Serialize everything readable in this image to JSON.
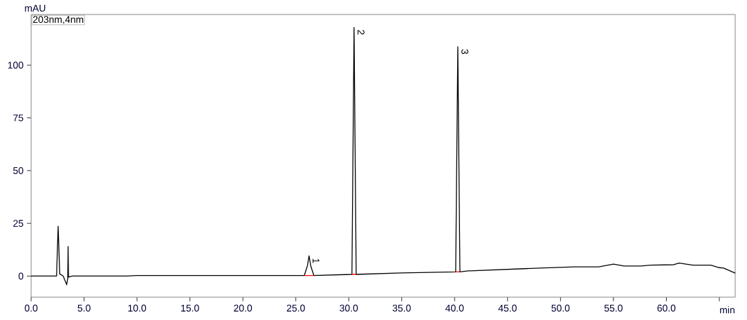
{
  "chart_data": {
    "type": "line",
    "xlabel": "min",
    "ylabel": "mAU",
    "annotations": [
      "203nm,4nm",
      {
        "text": "1",
        "x": 26.25,
        "y": 9.6
      },
      {
        "text": "2",
        "x": 30.5,
        "y": 117.9
      },
      {
        "text": "3",
        "x": 40.3,
        "y": 108.7
      }
    ],
    "xlim": [
      0,
      66.5
    ],
    "ylim": [
      -10,
      124
    ],
    "xticks": [
      {
        "value": 0,
        "label": "0.0"
      },
      {
        "value": 5,
        "label": "5.0"
      },
      {
        "value": 10,
        "label": "10.0"
      },
      {
        "value": 15,
        "label": "15.0"
      },
      {
        "value": 20,
        "label": "20.0"
      },
      {
        "value": 25,
        "label": "25.0"
      },
      {
        "value": 30,
        "label": "30.0"
      },
      {
        "value": 35,
        "label": "35.0"
      },
      {
        "value": 40,
        "label": "40.0"
      },
      {
        "value": 45,
        "label": "45.0"
      },
      {
        "value": 50,
        "label": "50.0"
      },
      {
        "value": 55,
        "label": "55.0"
      },
      {
        "value": 60,
        "label": "60.0"
      },
      {
        "value": 65,
        "label": null
      }
    ],
    "yticks": [
      0,
      25,
      50,
      75,
      100
    ],
    "series": [
      {
        "color": "#000000",
        "x": [
          0,
          2.4,
          2.55,
          2.7,
          3.03,
          3.36,
          3.46,
          3.49,
          3.53,
          3.9,
          6,
          9,
          10,
          15,
          20,
          25,
          25.8,
          26.1,
          26.25,
          26.4,
          26.7,
          30.3,
          30.5,
          30.7,
          35,
          40.1,
          40.3,
          40.5,
          41.3,
          41.5,
          48.0,
          51.3,
          53.6,
          55.0,
          56.0,
          57.6,
          58.5,
          60.7,
          61.2,
          62.5,
          64.2,
          65.0,
          65.4,
          66.5
        ],
        "values": [
          0,
          0,
          23.6,
          1.1,
          0,
          -4.1,
          -1,
          14,
          -0.5,
          0,
          0,
          0,
          0.3,
          0.3,
          0.3,
          0.3,
          0.3,
          5,
          9.6,
          5,
          0.3,
          0.8,
          117.9,
          0.8,
          1.5,
          2.0,
          108.7,
          2.0,
          2.5,
          2.5,
          3.8,
          4.4,
          4.4,
          5.7,
          4.8,
          4.8,
          5.2,
          5.4,
          6.2,
          5.2,
          5.2,
          4.0,
          3.8,
          1.4
        ]
      },
      {
        "color": "#ff0000",
        "x": [
          25.8,
          26.7,
          28,
          30.3,
          30.7,
          32,
          40.1,
          40.5
        ],
        "values": [
          0.3,
          0.3,
          null,
          0.8,
          0.8,
          null,
          2.0,
          2.0
        ]
      }
    ]
  }
}
